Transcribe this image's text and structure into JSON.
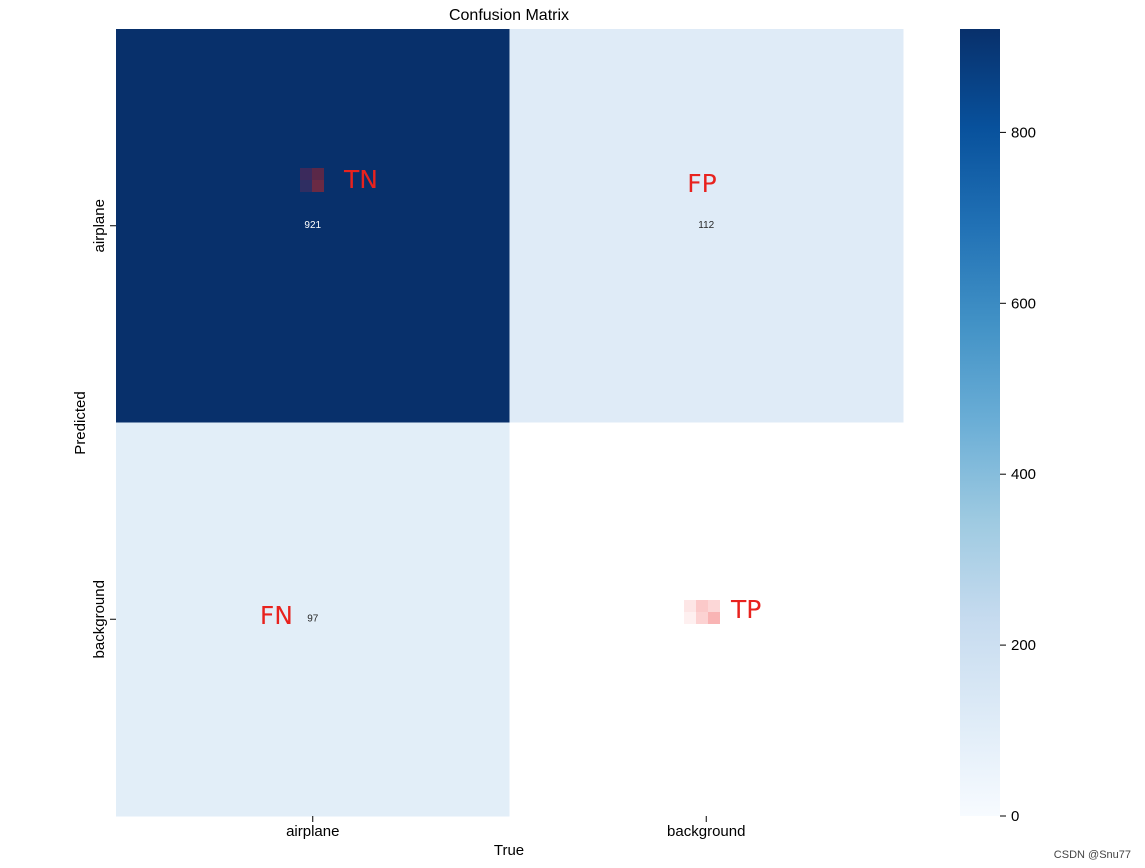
{
  "chart_data": {
    "type": "heatmap",
    "title": "Confusion Matrix",
    "xlabel": "True",
    "ylabel": "Predicted",
    "x_categories": [
      "airplane",
      "background"
    ],
    "y_categories": [
      "airplane",
      "background"
    ],
    "values": [
      [
        921,
        112
      ],
      [
        97,
        null
      ]
    ],
    "cell_labels": [
      [
        "921",
        "112"
      ],
      [
        "97",
        ""
      ]
    ],
    "annotations": [
      [
        "TN",
        "FP"
      ],
      [
        "FN",
        "TP"
      ]
    ],
    "colormap": "Blues",
    "colorbar": {
      "range": [
        0,
        921
      ],
      "ticks": [
        0,
        200,
        400,
        600,
        800
      ]
    },
    "colors": {
      "annotation": "#e8221e",
      "cell_high": "#08306b",
      "cell_low": "#f7fbff"
    }
  },
  "watermark": "CSDN @Snu77"
}
